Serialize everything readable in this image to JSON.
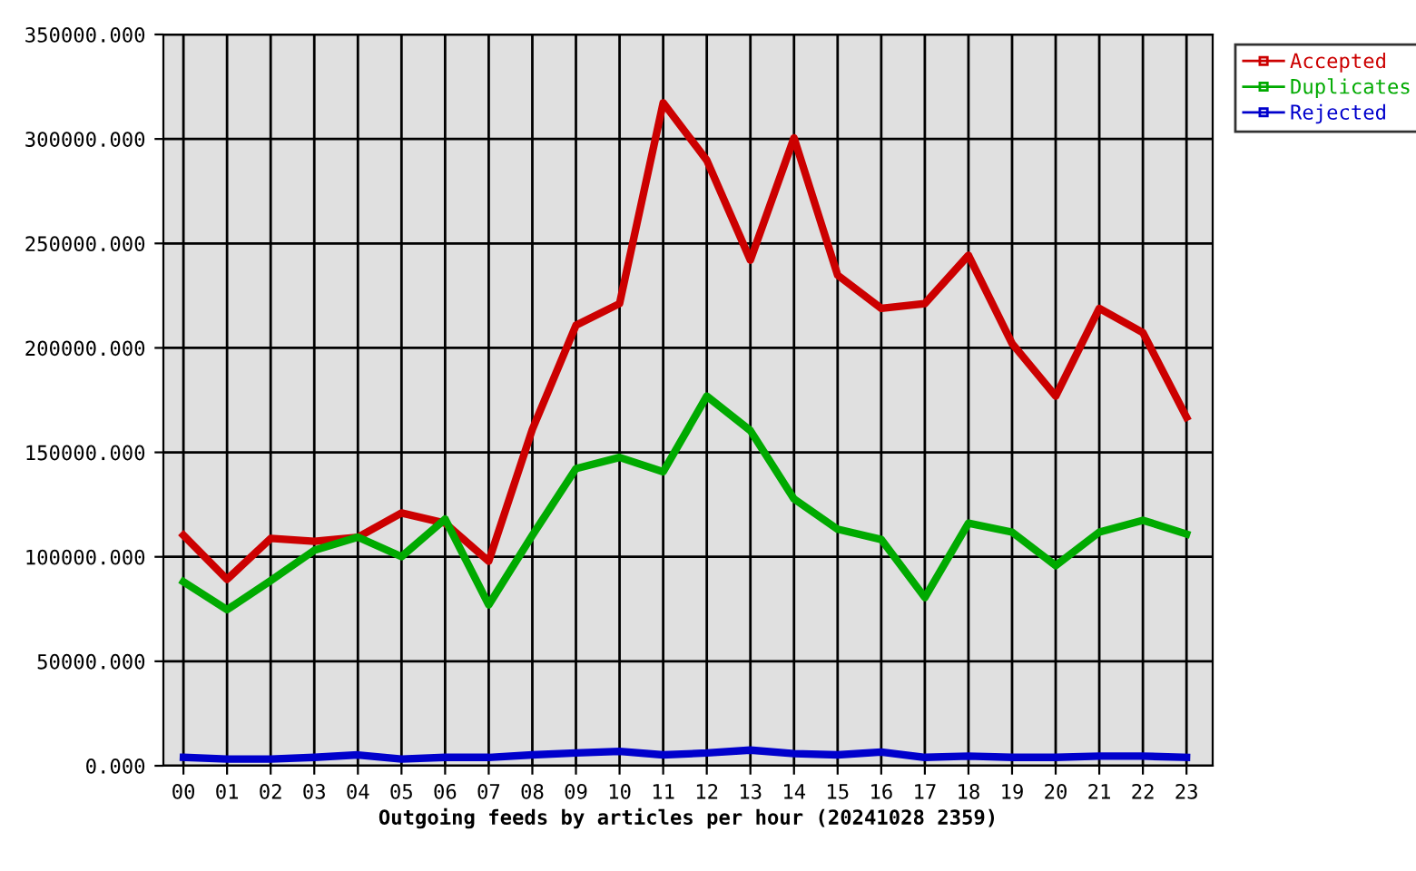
{
  "chart_data": {
    "type": "line",
    "xlabel": "Outgoing feeds by articles per hour (20241028 2359)",
    "categories": [
      "00",
      "01",
      "02",
      "03",
      "04",
      "05",
      "06",
      "07",
      "08",
      "09",
      "10",
      "11",
      "12",
      "13",
      "14",
      "15",
      "16",
      "17",
      "18",
      "19",
      "20",
      "21",
      "22",
      "23"
    ],
    "series": [
      {
        "name": "Accepted",
        "color": "#cc0000",
        "values": [
          110300,
          89200,
          108800,
          107400,
          109400,
          121000,
          116100,
          97900,
          161000,
          210800,
          221200,
          317300,
          289800,
          242000,
          300500,
          234800,
          218900,
          221200,
          244300,
          202100,
          176900,
          218900,
          207300,
          166800
        ]
      },
      {
        "name": "Duplicates",
        "color": "#00aa00",
        "values": [
          88000,
          74700,
          88600,
          103100,
          109400,
          100100,
          118100,
          77000,
          110300,
          142200,
          147600,
          140700,
          176900,
          160400,
          127700,
          113200,
          108300,
          80500,
          116100,
          111800,
          95800,
          111800,
          117500,
          110900
        ]
      },
      {
        "name": "Rejected",
        "color": "#0000cc",
        "values": [
          4000,
          3200,
          3200,
          4000,
          5200,
          3200,
          4000,
          4000,
          5200,
          6100,
          6900,
          5200,
          6100,
          7500,
          5800,
          5200,
          6600,
          4000,
          4600,
          4000,
          4000,
          4600,
          4600,
          4000
        ]
      }
    ],
    "ylim": [
      0,
      350000
    ],
    "yticks": [
      {
        "value": 0,
        "label": "0.000"
      },
      {
        "value": 50000,
        "label": "50000.000"
      },
      {
        "value": 100000,
        "label": "100000.000"
      },
      {
        "value": 150000,
        "label": "150000.000"
      },
      {
        "value": 200000,
        "label": "200000.000"
      },
      {
        "value": 250000,
        "label": "250000.000"
      },
      {
        "value": 300000,
        "label": "300000.000"
      },
      {
        "value": 350000,
        "label": "350000.000"
      }
    ],
    "grid": true,
    "legend": "top right"
  }
}
